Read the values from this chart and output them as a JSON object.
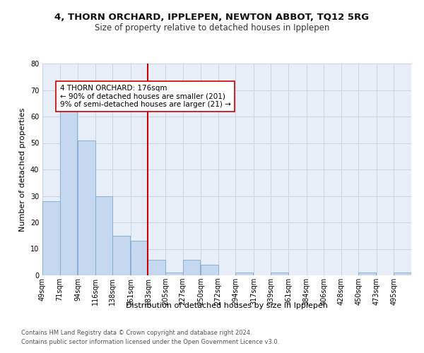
{
  "title": "4, THORN ORCHARD, IPPLEPEN, NEWTON ABBOT, TQ12 5RG",
  "subtitle": "Size of property relative to detached houses in Ipplepen",
  "xlabel": "Distribution of detached houses by size in Ipplepen",
  "ylabel": "Number of detached properties",
  "bar_color": "#c5d8f0",
  "bar_edge_color": "#7aaad0",
  "grid_color": "#c8d4e8",
  "background_color": "#e8eef8",
  "vline_color": "#cc0000",
  "vline_x_bin_index": 6,
  "annotation_text_line1": "4 THORN ORCHARD: 176sqm",
  "annotation_text_line2": "← 90% of detached houses are smaller (201)",
  "annotation_text_line3": "9% of semi-detached houses are larger (21) →",
  "annotation_box_color": "#ffffff",
  "annotation_box_edge": "#cc0000",
  "footer1": "Contains HM Land Registry data © Crown copyright and database right 2024.",
  "footer2": "Contains public sector information licensed under the Open Government Licence v3.0.",
  "bin_labels": [
    "49sqm",
    "71sqm",
    "94sqm",
    "116sqm",
    "138sqm",
    "161sqm",
    "183sqm",
    "205sqm",
    "227sqm",
    "250sqm",
    "272sqm",
    "294sqm",
    "317sqm",
    "339sqm",
    "361sqm",
    "384sqm",
    "406sqm",
    "428sqm",
    "450sqm",
    "473sqm",
    "495sqm"
  ],
  "bin_left_edges": [
    49,
    71,
    94,
    116,
    138,
    161,
    183,
    205,
    227,
    250,
    272,
    294,
    317,
    339,
    361,
    384,
    406,
    428,
    450,
    473,
    495
  ],
  "bin_width": 22,
  "values": [
    28,
    67,
    51,
    30,
    15,
    13,
    6,
    1,
    6,
    4,
    0,
    1,
    0,
    1,
    0,
    0,
    0,
    0,
    1,
    0,
    1
  ],
  "ylim": [
    0,
    80
  ],
  "yticks": [
    0,
    10,
    20,
    30,
    40,
    50,
    60,
    70,
    80
  ],
  "title_fontsize": 9.5,
  "subtitle_fontsize": 8.5,
  "ylabel_fontsize": 8,
  "xlabel_fontsize": 8,
  "tick_fontsize": 7,
  "annotation_fontsize": 7.5,
  "footer_fontsize": 6
}
